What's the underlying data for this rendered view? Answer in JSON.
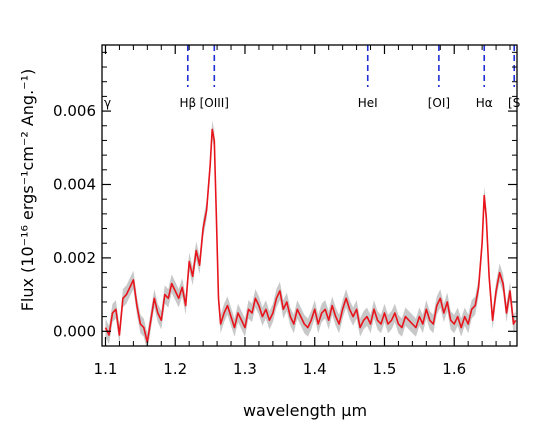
{
  "chart_data": {
    "type": "line",
    "xlabel": "wavelength μm",
    "ylabel": "Flux (10⁻¹⁶ ergs⁻¹cm⁻² Ang.⁻¹)",
    "xlim": [
      1.095,
      1.69
    ],
    "ylim": [
      -0.0004,
      0.0078
    ],
    "x_ticks": [
      "1.1",
      "1.2",
      "1.3",
      "1.4",
      "1.5",
      "1.6"
    ],
    "x_tick_values": [
      1.1,
      1.2,
      1.3,
      1.4,
      1.5,
      1.6
    ],
    "y_ticks": [
      "0.000",
      "0.002",
      "0.004",
      "0.006"
    ],
    "y_tick_values": [
      0.0,
      0.002,
      0.004,
      0.006
    ],
    "line_markers": [
      {
        "label": "γ",
        "x": 1.094,
        "line": false
      },
      {
        "label": "Hβ",
        "x": 1.218,
        "line": true
      },
      {
        "label": "[OIII]",
        "x": 1.256,
        "line": true
      },
      {
        "label": "HeI",
        "x": 1.476,
        "line": true
      },
      {
        "label": "[OI]",
        "x": 1.578,
        "line": true
      },
      {
        "label": "Hα",
        "x": 1.643,
        "line": true
      },
      {
        "label": "[S",
        "x": 1.686,
        "line": true
      }
    ],
    "series": [
      {
        "color": "#e8141c",
        "band_color": "#c8c8c8",
        "band_halfwidth": 0.00025,
        "x": [
          1.1,
          1.105,
          1.11,
          1.115,
          1.12,
          1.125,
          1.13,
          1.135,
          1.14,
          1.145,
          1.15,
          1.155,
          1.16,
          1.165,
          1.17,
          1.175,
          1.18,
          1.185,
          1.19,
          1.195,
          1.2,
          1.205,
          1.21,
          1.215,
          1.22,
          1.225,
          1.23,
          1.235,
          1.24,
          1.245,
          1.25,
          1.253,
          1.256,
          1.259,
          1.262,
          1.265,
          1.27,
          1.275,
          1.28,
          1.285,
          1.29,
          1.295,
          1.3,
          1.305,
          1.31,
          1.315,
          1.32,
          1.325,
          1.33,
          1.335,
          1.34,
          1.345,
          1.35,
          1.355,
          1.36,
          1.365,
          1.37,
          1.375,
          1.38,
          1.385,
          1.39,
          1.395,
          1.4,
          1.405,
          1.41,
          1.415,
          1.42,
          1.425,
          1.43,
          1.435,
          1.44,
          1.445,
          1.45,
          1.455,
          1.46,
          1.465,
          1.47,
          1.475,
          1.48,
          1.485,
          1.49,
          1.495,
          1.5,
          1.505,
          1.51,
          1.515,
          1.52,
          1.525,
          1.53,
          1.535,
          1.54,
          1.545,
          1.55,
          1.555,
          1.56,
          1.565,
          1.57,
          1.575,
          1.58,
          1.585,
          1.59,
          1.595,
          1.6,
          1.605,
          1.61,
          1.615,
          1.62,
          1.625,
          1.63,
          1.635,
          1.64,
          1.643,
          1.646,
          1.65,
          1.655,
          1.66,
          1.665,
          1.67,
          1.675,
          1.68,
          1.685,
          1.688
        ],
        "y": [
          0.0001,
          -0.0001,
          0.0005,
          0.0006,
          -0.0001,
          0.0009,
          0.001,
          0.0012,
          0.0014,
          0.0007,
          0.0002,
          0.0001,
          -0.0003,
          0.0003,
          0.0009,
          0.0005,
          0.0003,
          0.001,
          0.0009,
          0.0013,
          0.0011,
          0.0009,
          0.0012,
          0.0007,
          0.0019,
          0.0015,
          0.0022,
          0.0018,
          0.0028,
          0.0033,
          0.0045,
          0.0055,
          0.0052,
          0.0031,
          0.0009,
          0.0002,
          0.0005,
          0.0007,
          0.0004,
          0.0001,
          0.0005,
          0.0003,
          0.0001,
          0.0006,
          0.0005,
          0.0009,
          0.0007,
          0.0004,
          0.0006,
          0.0003,
          0.0005,
          0.0009,
          0.0011,
          0.0006,
          0.0008,
          0.0004,
          0.0002,
          0.0006,
          0.0004,
          0.0002,
          0.0001,
          0.0003,
          0.0006,
          0.0002,
          0.0005,
          0.0006,
          0.0003,
          0.0007,
          0.0004,
          0.0002,
          0.0006,
          0.0009,
          0.0006,
          0.0004,
          0.0006,
          0.0001,
          0.0003,
          0.0004,
          0.0002,
          0.0006,
          0.0003,
          0.0002,
          0.0005,
          0.0002,
          0.0003,
          0.0005,
          0.0002,
          0.0001,
          0.0004,
          0.0003,
          0.0002,
          0.0001,
          0.0004,
          0.0002,
          0.0006,
          0.0003,
          0.0002,
          0.0007,
          0.0009,
          0.0005,
          0.0008,
          0.0003,
          0.0002,
          0.0004,
          0.0001,
          0.0004,
          0.0002,
          0.0006,
          0.0007,
          0.0012,
          0.0024,
          0.0037,
          0.0031,
          0.0015,
          0.0003,
          0.0011,
          0.0016,
          0.0013,
          0.0005,
          0.0011,
          0.0002,
          0.0003
        ]
      }
    ]
  }
}
